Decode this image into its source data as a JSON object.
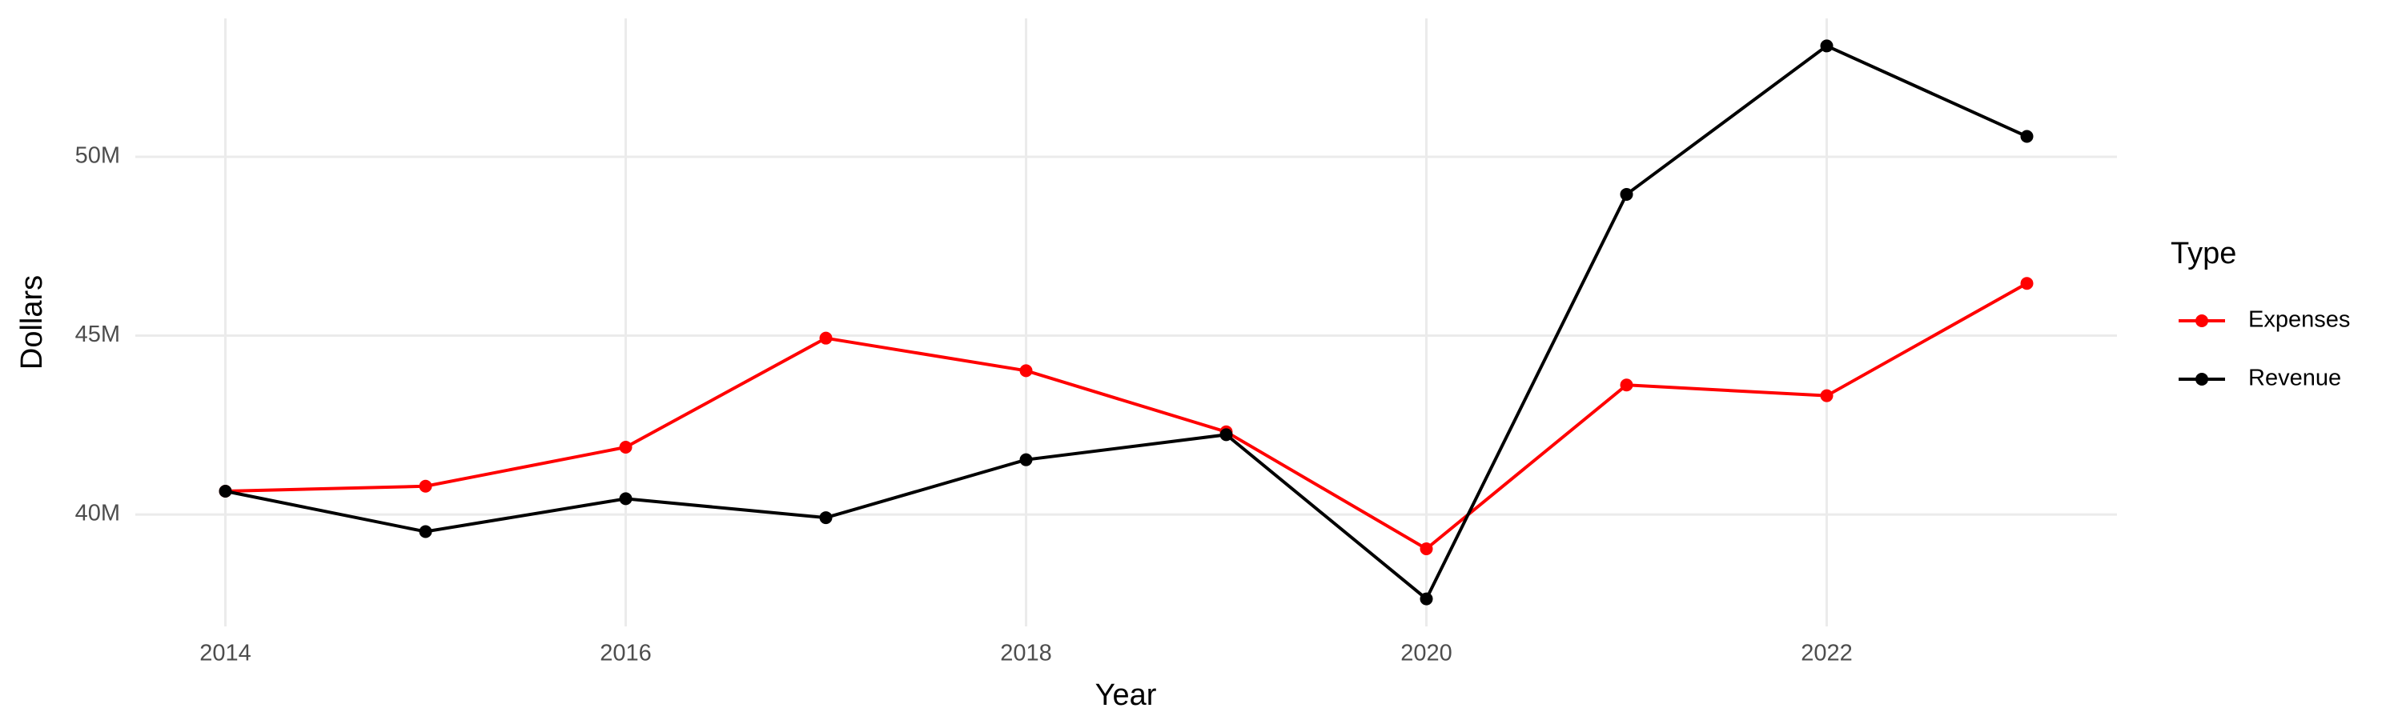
{
  "chart_data": {
    "type": "line",
    "x_label": "Year",
    "y_label": "Dollars",
    "x": [
      2014,
      2015,
      2016,
      2017,
      2018,
      2019,
      2020,
      2021,
      2022,
      2023
    ],
    "series": [
      {
        "name": "Expenses",
        "color": "#ff0000",
        "values": [
          40650000,
          40790000,
          41880000,
          44930000,
          44020000,
          42310000,
          39040000,
          43620000,
          43320000,
          46460000
        ]
      },
      {
        "name": "Revenue",
        "color": "#000000",
        "values": [
          40650000,
          39520000,
          40440000,
          39910000,
          41530000,
          42230000,
          37640000,
          48950000,
          53100000,
          50570000
        ]
      }
    ],
    "xlim": [
      2013.55,
      2023.45
    ],
    "xticks": [
      2014,
      2016,
      2018,
      2020,
      2022
    ],
    "ylim": [
      36870000,
      53870000
    ],
    "yticks": [
      {
        "value": 40000000,
        "label": "40M"
      },
      {
        "value": 45000000,
        "label": "45M"
      },
      {
        "value": 50000000,
        "label": "50M"
      }
    ],
    "grid": true,
    "legend_title": "Type",
    "legend_position": "right"
  }
}
